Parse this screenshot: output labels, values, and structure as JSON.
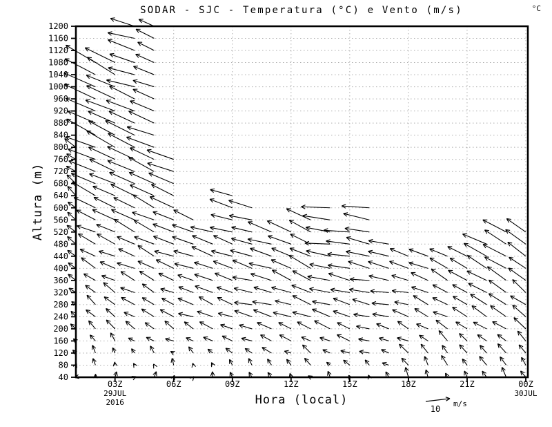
{
  "chart_data": {
    "type": "vector-field",
    "title": "SODAR - SJC - Temperatura (°C) e Vento (m/s)",
    "unit_top_right": "°C",
    "xlabel": "Hora (local)",
    "ylabel": "Altura (m)",
    "legend_position": "bottom-right",
    "grid": "dotted",
    "colors": {
      "axis": "#000000",
      "grid": "#adadad",
      "arrows": "#000000",
      "text": "#000000",
      "background": "#ffffff"
    },
    "y_axis": {
      "min": 40,
      "max": 1200,
      "step": 40,
      "unit": "m"
    },
    "x_axis": {
      "hour_min": 1,
      "hour_max": 24,
      "ticks": [
        {
          "hour": 3,
          "label": "03Z",
          "sub": [
            "29JUL",
            "2016"
          ]
        },
        {
          "hour": 6,
          "label": "06Z",
          "sub": []
        },
        {
          "hour": 9,
          "label": "09Z",
          "sub": []
        },
        {
          "hour": 12,
          "label": "12Z",
          "sub": []
        },
        {
          "hour": 15,
          "label": "15Z",
          "sub": []
        },
        {
          "hour": 18,
          "label": "18Z",
          "sub": []
        },
        {
          "hour": 21,
          "label": "21Z",
          "sub": []
        },
        {
          "hour": 24,
          "label": "00Z",
          "sub": [
            "30JUL"
          ]
        }
      ]
    },
    "wind_scale": {
      "value": "10",
      "unit": "m/s",
      "speed_ms": 10
    },
    "level_step_m": 40,
    "columns": [
      {
        "hour": 1,
        "label": "01Z",
        "max_height_m": 800,
        "profile": [
          [
            40,
            0.3,
            1.2
          ],
          [
            240,
            -2.2,
            2.2
          ],
          [
            520,
            -3.2,
            2.6
          ],
          [
            800,
            -4.5,
            3.0
          ]
        ]
      },
      {
        "hour": 2,
        "label": "02Z",
        "max_height_m": 1080,
        "profile": [
          [
            40,
            0.3,
            1.4
          ],
          [
            240,
            -3.5,
            2.8
          ],
          [
            520,
            -7.5,
            3.5
          ],
          [
            760,
            -11.5,
            5.5
          ],
          [
            1080,
            -12.5,
            6.0
          ]
        ]
      },
      {
        "hour": 3,
        "label": "03Z",
        "max_height_m": 1080,
        "profile": [
          [
            40,
            0.2,
            1.4
          ],
          [
            240,
            -3.8,
            2.8
          ],
          [
            520,
            -8.0,
            3.5
          ],
          [
            760,
            -11.5,
            5.5
          ],
          [
            1080,
            -12.0,
            6.0
          ]
        ]
      },
      {
        "hour": 4,
        "label": "04Z",
        "max_height_m": 1200,
        "profile": [
          [
            40,
            0.3,
            1.5
          ],
          [
            240,
            -4.5,
            2.5
          ],
          [
            520,
            -8.5,
            4.0
          ],
          [
            800,
            -11.5,
            5.0
          ],
          [
            1200,
            -10.5,
            3.0
          ]
        ]
      },
      {
        "hour": 5,
        "label": "05Z",
        "max_height_m": 1200,
        "profile": [
          [
            40,
            0.3,
            1.5
          ],
          [
            240,
            -4.5,
            2.5
          ],
          [
            520,
            -8.5,
            4.0
          ],
          [
            800,
            -11.0,
            5.0
          ],
          [
            1200,
            -6.5,
            2.5
          ]
        ]
      },
      {
        "hour": 6,
        "label": "06Z",
        "max_height_m": 760,
        "profile": [
          [
            40,
            0.3,
            1.5
          ],
          [
            240,
            -5.0,
            2.5
          ],
          [
            520,
            -9.0,
            3.5
          ],
          [
            760,
            -10.5,
            4.0
          ]
        ]
      },
      {
        "hour": 7,
        "label": "07Z",
        "max_height_m": 580,
        "profile": [
          [
            40,
            0.2,
            1.4
          ],
          [
            240,
            -5.5,
            2.2
          ],
          [
            580,
            -9.0,
            3.0
          ]
        ]
      },
      {
        "hour": 8,
        "label": "08Z",
        "max_height_m": 520,
        "profile": [
          [
            40,
            0.0,
            1.4
          ],
          [
            240,
            -6.0,
            2.2
          ],
          [
            520,
            -9.0,
            3.0
          ]
        ]
      },
      {
        "hour": 9,
        "label": "09Z",
        "max_height_m": 640,
        "profile": [
          [
            40,
            -0.5,
            1.4
          ],
          [
            240,
            -6.5,
            2.0
          ],
          [
            640,
            -9.5,
            3.0
          ]
        ]
      },
      {
        "hour": 10,
        "label": "10Z",
        "max_height_m": 620,
        "profile": [
          [
            40,
            -0.8,
            1.4
          ],
          [
            240,
            -7.0,
            2.0
          ],
          [
            620,
            -9.5,
            3.0
          ]
        ]
      },
      {
        "hour": 11,
        "label": "11Z",
        "max_height_m": 540,
        "profile": [
          [
            40,
            -0.8,
            1.4
          ],
          [
            240,
            -7.0,
            2.0
          ],
          [
            540,
            -10.0,
            3.0
          ]
        ]
      },
      {
        "hour": 12,
        "label": "12Z",
        "max_height_m": 540,
        "profile": [
          [
            40,
            -0.8,
            1.4
          ],
          [
            240,
            -7.0,
            2.5
          ],
          [
            540,
            -9.5,
            5.0
          ]
        ]
      },
      {
        "hour": 13,
        "label": "13Z",
        "max_height_m": 560,
        "profile": [
          [
            40,
            -0.8,
            1.5
          ],
          [
            240,
            -7.0,
            3.0
          ],
          [
            560,
            -9.5,
            5.5
          ]
        ]
      },
      {
        "hour": 14,
        "label": "14Z",
        "max_height_m": 620,
        "profile": [
          [
            40,
            -0.8,
            1.5
          ],
          [
            240,
            -7.5,
            2.5
          ],
          [
            620,
            -11.5,
            1.0
          ]
        ]
      },
      {
        "hour": 15,
        "label": "15Z",
        "max_height_m": 540,
        "profile": [
          [
            40,
            -0.8,
            1.5
          ],
          [
            240,
            -7.0,
            2.0
          ],
          [
            540,
            -10.5,
            1.0
          ]
        ]
      },
      {
        "hour": 16,
        "label": "16Z",
        "max_height_m": 600,
        "profile": [
          [
            40,
            -1.0,
            1.8
          ],
          [
            240,
            -7.0,
            1.8
          ],
          [
            600,
            -11.0,
            1.5
          ]
        ]
      },
      {
        "hour": 17,
        "label": "17Z",
        "max_height_m": 480,
        "profile": [
          [
            40,
            -1.2,
            2.2
          ],
          [
            240,
            -6.5,
            1.8
          ],
          [
            480,
            -9.0,
            1.5
          ]
        ]
      },
      {
        "hour": 18,
        "label": "18Z",
        "max_height_m": 460,
        "profile": [
          [
            40,
            -1.2,
            2.8
          ],
          [
            240,
            -6.0,
            2.0
          ],
          [
            460,
            -8.5,
            2.0
          ]
        ]
      },
      {
        "hour": 19,
        "label": "19Z",
        "max_height_m": 440,
        "profile": [
          [
            40,
            -1.2,
            3.0
          ],
          [
            240,
            -5.5,
            2.5
          ],
          [
            440,
            -8.0,
            3.0
          ]
        ]
      },
      {
        "hour": 20,
        "label": "20Z",
        "max_height_m": 440,
        "profile": [
          [
            40,
            -1.2,
            3.0
          ],
          [
            240,
            -5.5,
            3.0
          ],
          [
            440,
            -8.0,
            4.0
          ]
        ]
      },
      {
        "hour": 21,
        "label": "21Z",
        "max_height_m": 460,
        "profile": [
          [
            40,
            -1.5,
            3.0
          ],
          [
            240,
            -5.5,
            3.5
          ],
          [
            460,
            -8.5,
            4.5
          ]
        ]
      },
      {
        "hour": 22,
        "label": "22Z",
        "max_height_m": 480,
        "profile": [
          [
            40,
            -1.5,
            3.0
          ],
          [
            240,
            -6.0,
            3.5
          ],
          [
            480,
            -9.5,
            5.0
          ]
        ]
      },
      {
        "hour": 23,
        "label": "23Z",
        "max_height_m": 520,
        "profile": [
          [
            40,
            -1.5,
            3.0
          ],
          [
            240,
            -6.0,
            4.0
          ],
          [
            520,
            -10.0,
            5.0
          ]
        ]
      },
      {
        "hour": 24,
        "label": "00Z",
        "max_height_m": 520,
        "profile": [
          [
            40,
            -1.5,
            3.2
          ],
          [
            240,
            -5.5,
            4.5
          ],
          [
            520,
            -8.0,
            6.0
          ]
        ]
      }
    ]
  }
}
